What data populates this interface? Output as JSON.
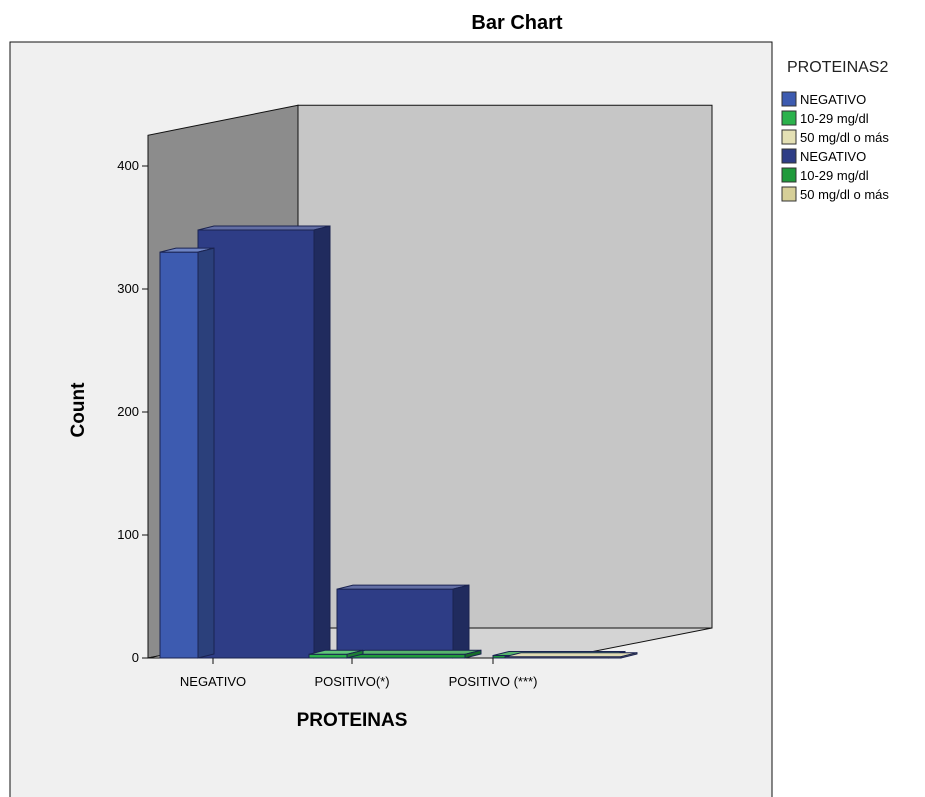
{
  "chart_data": {
    "type": "bar",
    "title": "Bar Chart",
    "xlabel": "PROTEINAS",
    "ylabel": "Count",
    "categories": [
      "NEGATIVO",
      "POSITIVO(*)",
      "POSITIVO (***)"
    ],
    "yticks": [
      "0",
      "100",
      "200",
      "300",
      "400"
    ],
    "ylim": [
      0,
      400
    ],
    "legend": {
      "title": "PROTEINAS2",
      "position": "right",
      "entries": [
        {
          "label": "NEGATIVO",
          "color": "#3d5bb0"
        },
        {
          "label": "10-29 mg/dl",
          "color": "#2bb24c"
        },
        {
          "label": "50 mg/dl o más",
          "color": "#e4e0b4"
        },
        {
          "label": "NEGATIVO",
          "color": "#2e3d86"
        },
        {
          "label": "10-29 mg/dl",
          "color": "#1f9a3b"
        },
        {
          "label": "50 mg/dl o más",
          "color": "#d6cf98"
        }
      ]
    },
    "series": [
      {
        "values": [
          330,
          0,
          0
        ],
        "color": "#3d5bb0"
      },
      {
        "values": [
          0,
          3,
          0
        ],
        "color": "#2bb24c"
      },
      {
        "values": [
          0,
          0,
          0
        ],
        "color": "#e4e0b4"
      },
      {
        "values": [
          348,
          56,
          0
        ],
        "color": "#2e3d86"
      },
      {
        "values": [
          0,
          3,
          2
        ],
        "color": "#1f9a3b"
      },
      {
        "values": [
          0,
          0,
          1
        ],
        "color": "#d6cf98"
      }
    ],
    "grid": false
  }
}
